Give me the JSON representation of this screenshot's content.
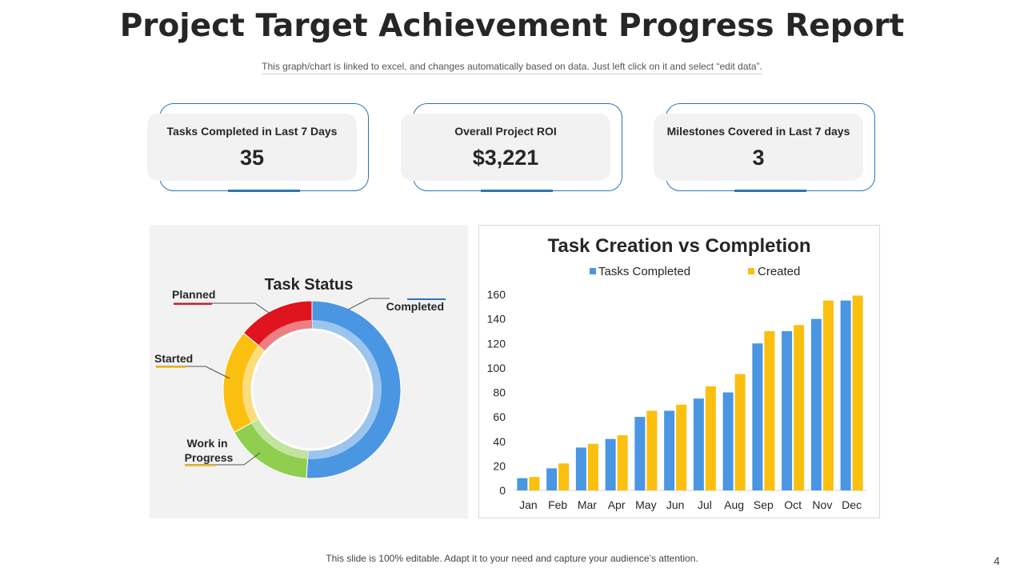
{
  "header": {
    "title": "Project Target Achievement Progress Report",
    "subtitle": "This graph/chart is linked to excel, and changes automatically based on data. Just left click on it and select “edit data”."
  },
  "kpis": [
    {
      "label": "Tasks Completed in Last 7 Days",
      "value": "35"
    },
    {
      "label": "Overall Project ROI",
      "value": "$3,221"
    },
    {
      "label": "Milestones Covered in Last 7 days",
      "value": "3"
    }
  ],
  "footer": {
    "note": "This slide is 100% editable. Adapt it to your need and capture your audience’s attention.",
    "page_number": "4"
  },
  "colors": {
    "accent_blue": "#2e75b6",
    "series_blue": "#4a96e2",
    "series_yellow": "#fbbf10",
    "red": "#e0141e",
    "green": "#8fce4e"
  },
  "chart_data": [
    {
      "type": "pie",
      "title": "Task Status",
      "donut": true,
      "labels": [
        "Completed",
        "Work in Progress",
        "Started",
        "Planned"
      ],
      "values": [
        51,
        16,
        19,
        14
      ],
      "colors": [
        "#4a96e2",
        "#8fce4e",
        "#fbbf10",
        "#e0141e"
      ]
    },
    {
      "type": "bar",
      "title": "Task Creation vs Completion",
      "categories": [
        "Jan",
        "Feb",
        "Mar",
        "Apr",
        "May",
        "Jun",
        "Jul",
        "Aug",
        "Sep",
        "Oct",
        "Nov",
        "Dec"
      ],
      "series": [
        {
          "name": "Tasks Completed",
          "color": "#4a96e2",
          "values": [
            10,
            18,
            35,
            42,
            60,
            65,
            75,
            80,
            120,
            130,
            140,
            155
          ]
        },
        {
          "name": "Created",
          "color": "#fbbf10",
          "values": [
            11,
            22,
            38,
            45,
            65,
            70,
            85,
            95,
            130,
            135,
            155,
            159
          ]
        }
      ],
      "ylim": [
        0,
        160
      ],
      "yticks": [
        0,
        20,
        40,
        60,
        80,
        100,
        120,
        140,
        160
      ],
      "legend": "top"
    }
  ]
}
